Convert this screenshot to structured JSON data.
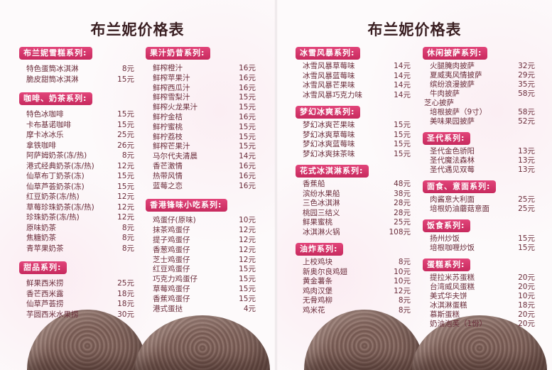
{
  "colors": {
    "header_bg": "#d6336c",
    "item_text": "#6a2c3a",
    "title_text": "#3a1f22"
  },
  "pages": [
    {
      "title": "布兰妮价格表",
      "columns": [
        {
          "sections": [
            {
              "title": "布兰妮雪糕系列:",
              "items": [
                {
                  "name": "特色蛋筒冰淇淋",
                  "price": "8元"
                },
                {
                  "name": "脆皮甜筒冰淇淋",
                  "price": "15元"
                }
              ]
            },
            {
              "title": "咖啡、奶茶系列:",
              "items": [
                {
                  "name": "特色冰咖啡",
                  "price": "15元"
                },
                {
                  "name": "卡布基诺咖啡",
                  "price": "15元"
                },
                {
                  "name": "摩卡冰冰乐",
                  "price": "25元"
                },
                {
                  "name": "拿铁咖啡",
                  "price": "26元"
                },
                {
                  "name": "阿萨姆奶茶(冻/热)",
                  "price": "8元"
                },
                {
                  "name": "港式经典奶茶(冻/热)",
                  "price": "12元"
                },
                {
                  "name": "仙草布丁奶茶(冻)",
                  "price": "15元"
                },
                {
                  "name": "仙草芦荟奶茶(冻)",
                  "price": "15元"
                },
                {
                  "name": "红豆奶茶(冻/热)",
                  "price": "12元"
                },
                {
                  "name": "草莓珍珠奶茶(冻/热)",
                  "price": "12元"
                },
                {
                  "name": "珍珠奶茶(冻/热)",
                  "price": "12元"
                },
                {
                  "name": "原味奶茶",
                  "price": "8元"
                },
                {
                  "name": "焦糖奶茶",
                  "price": "8元"
                },
                {
                  "name": "青苹果奶茶",
                  "price": "8元"
                }
              ]
            },
            {
              "title": "甜品系列:",
              "items": [
                {
                  "name": "鲜果西米捞",
                  "price": "25元"
                },
                {
                  "name": "香芒西米露",
                  "price": "18元"
                },
                {
                  "name": "仙草芦荟捞",
                  "price": "18元"
                },
                {
                  "name": "芋圆西米水果捞",
                  "price": "30元"
                }
              ]
            }
          ]
        },
        {
          "sections": [
            {
              "title": "果汁奶昔系列:",
              "items": [
                {
                  "name": "鲜榨橙汁",
                  "price": "16元"
                },
                {
                  "name": "鲜榨苹果汁",
                  "price": "16元"
                },
                {
                  "name": "鲜榨西瓜汁",
                  "price": "16元"
                },
                {
                  "name": "鲜榨雪梨汁",
                  "price": "15元"
                },
                {
                  "name": "鲜榨火龙果汁",
                  "price": "15元"
                },
                {
                  "name": "鲜柠金桔",
                  "price": "16元"
                },
                {
                  "name": "鲜柠蜜桃",
                  "price": "15元"
                },
                {
                  "name": "鲜柠荔枝",
                  "price": "15元"
                },
                {
                  "name": "鲜榨芒果汁",
                  "price": "15元"
                },
                {
                  "name": "马尔代夫清晨",
                  "price": "14元"
                },
                {
                  "name": "香芒激情",
                  "price": "16元"
                },
                {
                  "name": "热带风情",
                  "price": "16元"
                },
                {
                  "name": "蓝莓之恋",
                  "price": "16元"
                }
              ]
            },
            {
              "title": "香港锋味小吃系列:",
              "items": [
                {
                  "name": "鸡蛋仔(原味)",
                  "price": "10元"
                },
                {
                  "name": "抹茶鸡蛋仔",
                  "price": "12元"
                },
                {
                  "name": "提子鸡蛋仔",
                  "price": "12元"
                },
                {
                  "name": "香葱鸡蛋仔",
                  "price": "12元"
                },
                {
                  "name": "芝士鸡蛋仔",
                  "price": "12元"
                },
                {
                  "name": "红豆鸡蛋仔",
                  "price": "15元"
                },
                {
                  "name": "巧克力鸡蛋仔",
                  "price": "15元"
                },
                {
                  "name": "草莓鸡蛋仔",
                  "price": "15元"
                },
                {
                  "name": "香蕉鸡蛋仔",
                  "price": "15元"
                },
                {
                  "name": "港式蛋挞",
                  "price": "4元"
                }
              ]
            }
          ]
        }
      ]
    },
    {
      "title": "布兰妮价格表",
      "columns": [
        {
          "sections": [
            {
              "title": "冰雪风暴系列:",
              "items": [
                {
                  "name": "冰雪风暴草莓味",
                  "price": "14元"
                },
                {
                  "name": "冰雪风暴蓝莓味",
                  "price": "14元"
                },
                {
                  "name": "冰雪风暴芒果味",
                  "price": "14元"
                },
                {
                  "name": "冰雪风暴巧克力味",
                  "price": "14元"
                }
              ]
            },
            {
              "title": "梦幻冰爽系列:",
              "items": [
                {
                  "name": "梦幻冰爽芒果味",
                  "price": "15元"
                },
                {
                  "name": "梦幻冰爽草莓味",
                  "price": "15元"
                },
                {
                  "name": "梦幻冰爽蓝莓味",
                  "price": "15元"
                },
                {
                  "name": "梦幻冰爽抹茶味",
                  "price": "15元"
                }
              ]
            },
            {
              "title": "花式冰淇淋系列:",
              "items": [
                {
                  "name": "香蕉船",
                  "price": "48元"
                },
                {
                  "name": "滨纷水果船",
                  "price": "38元"
                },
                {
                  "name": "三色冰淇淋",
                  "price": "28元"
                },
                {
                  "name": "桃园三结义",
                  "price": "28元"
                },
                {
                  "name": "鲜果蜜桃",
                  "price": "25元"
                },
                {
                  "name": "冰淇淋火锅",
                  "price": "108元"
                }
              ]
            },
            {
              "title": "油炸系列:",
              "items": [
                {
                  "name": "上校鸡块",
                  "price": "8元"
                },
                {
                  "name": "新奥尔良鸡翅",
                  "price": "10元"
                },
                {
                  "name": "黄金薯条",
                  "price": "10元"
                },
                {
                  "name": "鸡肉汉堡",
                  "price": "12元"
                },
                {
                  "name": "无骨鸡柳",
                  "price": "8元"
                },
                {
                  "name": "鸡米花",
                  "price": "8元"
                }
              ]
            }
          ]
        },
        {
          "sections": [
            {
              "title": "休闲披萨系列:",
              "items": [
                {
                  "name": "火腿腌肉披萨",
                  "price": "32元"
                },
                {
                  "name": "夏威夷风情披萨",
                  "price": "29元"
                },
                {
                  "name": "缤纷浪漫披萨",
                  "price": "35元"
                },
                {
                  "name": "牛肉披萨",
                  "price": "58元"
                },
                {
                  "name": "芝心披萨",
                  "price": ""
                },
                {
                  "name": "培根披萨（9寸）",
                  "price": "58元"
                },
                {
                  "name": "美味果园披萨",
                  "price": "52元"
                }
              ]
            },
            {
              "title": "圣代系列:",
              "items": [
                {
                  "name": "圣代金色骄阳",
                  "price": "13元"
                },
                {
                  "name": "圣代魔法森林",
                  "price": "13元"
                },
                {
                  "name": "圣代遇见双莓",
                  "price": "13元"
                }
              ]
            },
            {
              "title": "面食、意面系列:",
              "items": [
                {
                  "name": "肉酱意大利面",
                  "price": "25元"
                },
                {
                  "name": "培根奶油蘑菇意面",
                  "price": "25元"
                }
              ]
            },
            {
              "title": "饭食系列:",
              "items": [
                {
                  "name": "扬州炒饭",
                  "price": "15元"
                },
                {
                  "name": "培根咖喱炒饭",
                  "price": "15元"
                }
              ]
            },
            {
              "title": "蛋糕系列:",
              "items": [
                {
                  "name": "提拉米苏蛋糕",
                  "price": "20元"
                },
                {
                  "name": "台湾威风蛋糕",
                  "price": "20元"
                },
                {
                  "name": "美式华夫饼",
                  "price": "10元"
                },
                {
                  "name": "冰淇淋蛋糕",
                  "price": "18元"
                },
                {
                  "name": "慕斯蛋糕",
                  "price": "20元"
                },
                {
                  "name": "奶油泡芙（1份）",
                  "price": "20元"
                }
              ]
            }
          ]
        }
      ]
    }
  ]
}
